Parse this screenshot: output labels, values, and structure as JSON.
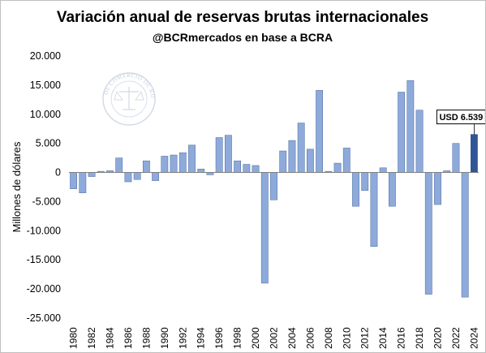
{
  "chart_data": {
    "type": "bar",
    "title": "Variación anual de reservas brutas internacionales",
    "subtitle": "@BCRmercados en base a BCRA",
    "ylabel": "Millones de dólares",
    "ylim": [
      -25000,
      20000
    ],
    "yticks": [
      20000,
      15000,
      10000,
      5000,
      0,
      -5000,
      -10000,
      -15000,
      -20000,
      -25000
    ],
    "ytick_labels": [
      "20.000",
      "15.000",
      "10.000",
      "5.000",
      "0",
      "-5.000",
      "-10.000",
      "-15.000",
      "-20.000",
      "-25.000"
    ],
    "categories": [
      1980,
      1981,
      1982,
      1983,
      1984,
      1985,
      1986,
      1987,
      1988,
      1989,
      1990,
      1991,
      1992,
      1993,
      1994,
      1995,
      1996,
      1997,
      1998,
      1999,
      2000,
      2001,
      2002,
      2003,
      2004,
      2005,
      2006,
      2007,
      2008,
      2009,
      2010,
      2011,
      2012,
      2013,
      2014,
      2015,
      2016,
      2017,
      2018,
      2019,
      2020,
      2021,
      2022,
      2023,
      2024
    ],
    "xtick_labels": [
      "1980",
      "1982",
      "1984",
      "1986",
      "1988",
      "1990",
      "1992",
      "1994",
      "1996",
      "1998",
      "2000",
      "2002",
      "2004",
      "2006",
      "2008",
      "2010",
      "2012",
      "2014",
      "2016",
      "2018",
      "2020",
      "2022",
      "2024"
    ],
    "values": [
      -2800,
      -3500,
      -700,
      200,
      300,
      2500,
      -1600,
      -1200,
      2000,
      -1400,
      2800,
      3000,
      3400,
      4700,
      600,
      -400,
      6000,
      6400,
      2000,
      1400,
      1200,
      -19000,
      -4700,
      3700,
      5500,
      8500,
      4000,
      14100,
      200,
      1600,
      4200,
      -5800,
      -3100,
      -12700,
      800,
      -5800,
      13800,
      15800,
      10700,
      -20900,
      -5500,
      300,
      5000,
      -21400,
      6539
    ],
    "highlight": {
      "category": 2024,
      "label": "USD 6.539"
    },
    "colors": {
      "bar": "#8eaadb",
      "bar_edge": "#4a6a9c",
      "highlight": "#2f5597",
      "callout_border": "#000000"
    },
    "watermark": "BOLSA DE COMERCIO DE ROSARIO",
    "grid": false,
    "legend": "none"
  }
}
